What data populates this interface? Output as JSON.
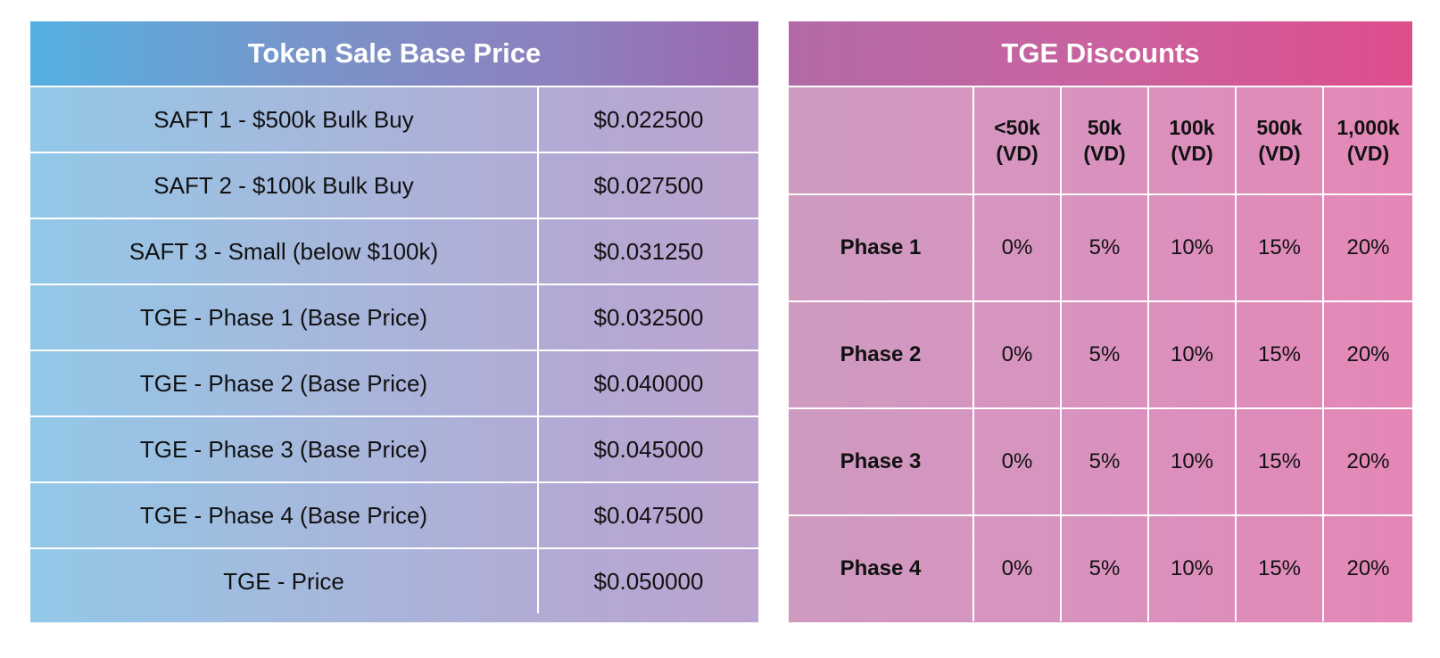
{
  "price_table": {
    "title": "Token Sale Base Price",
    "rows": [
      {
        "label": "SAFT 1 - $500k Bulk Buy",
        "value": "$0.022500"
      },
      {
        "label": "SAFT 2 - $100k Bulk Buy",
        "value": "$0.027500"
      },
      {
        "label": "SAFT 3 - Small (below $100k)",
        "value": "$0.031250"
      },
      {
        "label": "TGE - Phase 1 (Base Price)",
        "value": "$0.032500"
      },
      {
        "label": "TGE - Phase 2 (Base Price)",
        "value": "$0.040000"
      },
      {
        "label": "TGE - Phase 3 (Base Price)",
        "value": "$0.045000"
      },
      {
        "label": "TGE - Phase 4 (Base Price)",
        "value": "$0.047500"
      },
      {
        "label": "TGE - Price",
        "value": "$0.050000"
      }
    ]
  },
  "discount_table": {
    "title": "TGE Discounts",
    "columns": [
      {
        "line1": "<50k",
        "line2": "(VD)"
      },
      {
        "line1": "50k",
        "line2": "(VD)"
      },
      {
        "line1": "100k",
        "line2": "(VD)"
      },
      {
        "line1": "500k",
        "line2": "(VD)"
      },
      {
        "line1": "1,000k",
        "line2": "(VD)"
      }
    ],
    "rows": [
      {
        "phase": "Phase 1",
        "values": [
          "0%",
          "5%",
          "10%",
          "15%",
          "20%"
        ]
      },
      {
        "phase": "Phase 2",
        "values": [
          "0%",
          "5%",
          "10%",
          "15%",
          "20%"
        ]
      },
      {
        "phase": "Phase 3",
        "values": [
          "0%",
          "5%",
          "10%",
          "15%",
          "20%"
        ]
      },
      {
        "phase": "Phase 4",
        "values": [
          "0%",
          "5%",
          "10%",
          "15%",
          "20%"
        ]
      }
    ]
  }
}
